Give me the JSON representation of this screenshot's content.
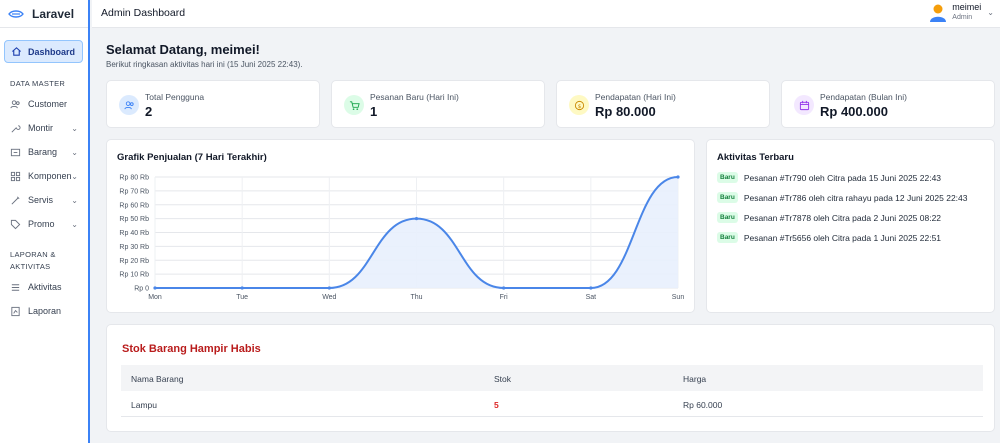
{
  "brand": {
    "name": "Laravel"
  },
  "sidebar": {
    "dashboard": "Dashboard",
    "section_master": "DATA MASTER",
    "items": [
      {
        "label": "Customer",
        "icon": "users-icon",
        "has_chevron": false
      },
      {
        "label": "Montir",
        "icon": "wrench-icon",
        "has_chevron": true
      },
      {
        "label": "Barang",
        "icon": "box-icon",
        "has_chevron": true
      },
      {
        "label": "Komponen",
        "icon": "grid-icon",
        "has_chevron": true
      },
      {
        "label": "Servis",
        "icon": "tool-icon",
        "has_chevron": true
      },
      {
        "label": "Promo",
        "icon": "tag-icon",
        "has_chevron": true
      }
    ],
    "section_report_1": "LAPORAN &",
    "section_report_2": "AKTIVITAS",
    "report_items": [
      {
        "label": "Aktivitas",
        "icon": "list-icon"
      },
      {
        "label": "Laporan",
        "icon": "file-icon"
      }
    ]
  },
  "header": {
    "title": "Admin Dashboard",
    "user_name": "meimei",
    "user_role": "Admin"
  },
  "welcome": {
    "title": "Selamat Datang, meimei!",
    "subtitle": "Berikut ringkasan aktivitas hari ini (15 Juni 2025 22:43)."
  },
  "stats": [
    {
      "label": "Total Pengguna",
      "value": "2",
      "icon": "users-icon",
      "color": "#dbeafe",
      "icon_color": "#3b82f6"
    },
    {
      "label": "Pesanan Baru (Hari Ini)",
      "value": "1",
      "icon": "cart-icon",
      "color": "#dcfce7",
      "icon_color": "#16a34a"
    },
    {
      "label": "Pendapatan (Hari Ini)",
      "value": "Rp 80.000",
      "icon": "coin-icon",
      "color": "#fef9c3",
      "icon_color": "#ca8a04"
    },
    {
      "label": "Pendapatan (Bulan Ini)",
      "value": "Rp 400.000",
      "icon": "calendar-icon",
      "color": "#f3e8ff",
      "icon_color": "#9333ea"
    }
  ],
  "chart": {
    "title": "Grafik Penjualan (7 Hari Terakhir)"
  },
  "chart_data": {
    "type": "line",
    "title": "Grafik Penjualan (7 Hari Terakhir)",
    "categories": [
      "Mon",
      "Tue",
      "Wed",
      "Thu",
      "Fri",
      "Sat",
      "Sun"
    ],
    "series": [
      {
        "values": [
          0,
          0,
          0,
          50000,
          0,
          0,
          80000
        ]
      }
    ],
    "y_ticks": [
      "Rp 0",
      "Rp 10 Rb",
      "Rp 20 Rb",
      "Rp 30 Rb",
      "Rp 40 Rb",
      "Rp 50 Rb",
      "Rp 60 Rb",
      "Rp 70 Rb",
      "Rp 80 Rb"
    ],
    "ylim": [
      0,
      80000
    ],
    "grid": true,
    "color": "#4a86e8",
    "fill": "#e8effd"
  },
  "activity": {
    "title": "Aktivitas Terbaru",
    "badge": "Baru",
    "items": [
      "Pesanan #Tr790 oleh Citra pada 15 Juni 2025 22:43",
      "Pesanan #Tr786 oleh citra rahayu pada 12 Juni 2025 22:43",
      "Pesanan #Tr7878 oleh Citra pada 2 Juni 2025 08:22",
      "Pesanan #Tr5656 oleh Citra pada 1 Juni 2025 22:51"
    ]
  },
  "stock": {
    "title": "Stok Barang Hampir Habis",
    "columns": [
      "Nama Barang",
      "Stok",
      "Harga"
    ],
    "rows": [
      {
        "name": "Lampu",
        "stock": "5",
        "price": "Rp 60.000"
      }
    ]
  }
}
